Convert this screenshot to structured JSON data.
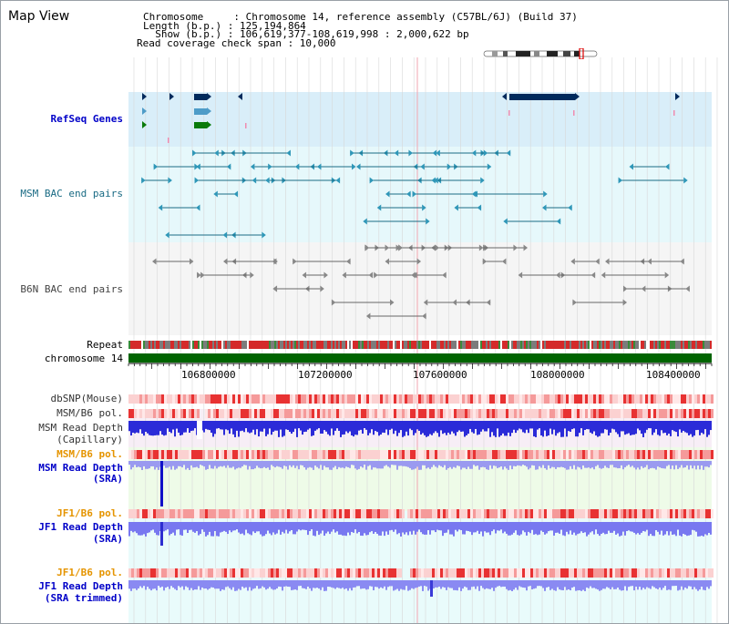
{
  "map_title": "Map View",
  "info": {
    "line1": "Chromosome     : Chromosome 14, reference assembly (C57BL/6J) (Build 37)",
    "line2": "Length (b.p.) : 125,194,864",
    "line3": "  Show (b.p.) : 106,619,377-108,619,998 : 2,000,622 bp",
    "line4": "Read coverage check span : 10,000"
  },
  "tracks": {
    "refseq": "RefSeq Genes",
    "msm_bac": "MSM BAC end pairs",
    "b6n_bac": "B6N BAC end pairs",
    "repeat": "Repeat",
    "chromosome": "chromosome 14",
    "dbsnp": "dbSNP(Mouse)",
    "msm_b6_pol_1": "MSM/B6 pol.",
    "msm_read_depth_cap_1": "MSM Read Depth",
    "msm_read_depth_cap_2": "(Capillary)",
    "msm_b6_pol_2": "MSM/B6 pol.",
    "msm_read_depth_sra_1": "MSM Read Depth",
    "msm_read_depth_sra_2": "(SRA)",
    "jf1_b6_pol_1": "JF1/B6 pol.",
    "jf1_read_depth_sra_1": "JF1 Read Depth",
    "jf1_read_depth_sra_2": "(SRA)",
    "jf1_b6_pol_2": "JF1/B6 pol.",
    "jf1_read_depth_trim_1": "JF1 Read Depth",
    "jf1_read_depth_trim_2": "(SRA trimmed)"
  },
  "axis_ticks": [
    "106800000",
    "107200000",
    "107600000",
    "108000000",
    "108400000"
  ],
  "colors": {
    "refseq_bg": "#d9eef9",
    "msm_bac_bg": "#e6f8fb",
    "b6n_bac_bg": "#f5f5f5",
    "chromosome_bar": "#006400",
    "read_depth_blue": "#2b2bd8",
    "read_depth_light": "#8c8cf0",
    "snp_red": "#e83232",
    "sra_bg": "#eefbe8"
  }
}
